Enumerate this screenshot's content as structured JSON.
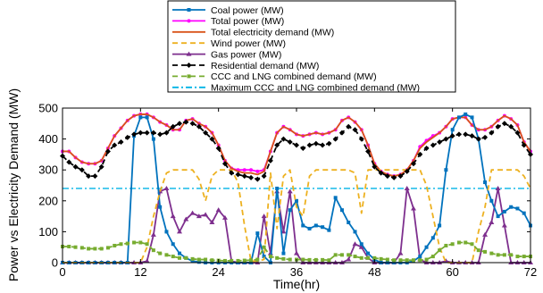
{
  "chart_data": {
    "type": "line",
    "xlabel": "Time(hr)",
    "ylabel": "Power vs Electricity Demand (MW)",
    "xlim": [
      0,
      72
    ],
    "ylim": [
      0,
      500
    ],
    "xticks": [
      0,
      12,
      24,
      36,
      48,
      60,
      72
    ],
    "yticks": [
      0,
      100,
      200,
      300,
      400,
      500
    ],
    "x": [
      0,
      1,
      2,
      3,
      4,
      5,
      6,
      7,
      8,
      9,
      10,
      11,
      12,
      13,
      14,
      15,
      16,
      17,
      18,
      19,
      20,
      21,
      22,
      23,
      24,
      25,
      26,
      27,
      28,
      29,
      30,
      31,
      32,
      33,
      34,
      35,
      36,
      37,
      38,
      39,
      40,
      41,
      42,
      43,
      44,
      45,
      46,
      47,
      48,
      49,
      50,
      51,
      52,
      53,
      54,
      55,
      56,
      57,
      58,
      59,
      60,
      61,
      62,
      63,
      64,
      65,
      66,
      67,
      68,
      69,
      70,
      71,
      72
    ],
    "legend_placement": "top-center, outside plot",
    "grid": false,
    "series": [
      {
        "name": "Coal power (MW)",
        "color": "#0072BD",
        "style": "solid",
        "marker": "square",
        "values": [
          0,
          0,
          0,
          0,
          0,
          0,
          0,
          0,
          0,
          0,
          0,
          410,
          470,
          470,
          400,
          180,
          100,
          60,
          30,
          15,
          5,
          2,
          0,
          0,
          0,
          0,
          0,
          0,
          0,
          0,
          95,
          20,
          0,
          240,
          30,
          170,
          200,
          120,
          110,
          120,
          115,
          105,
          210,
          170,
          130,
          100,
          60,
          30,
          10,
          0,
          0,
          0,
          0,
          0,
          5,
          20,
          50,
          80,
          120,
          300,
          430,
          470,
          480,
          470,
          400,
          260,
          200,
          150,
          165,
          180,
          175,
          160,
          120
        ]
      },
      {
        "name": "Total power (MW)",
        "color": "#FF00FF",
        "style": "solid",
        "marker": "circle",
        "values": [
          360,
          360,
          340,
          325,
          320,
          320,
          330,
          370,
          410,
          435,
          460,
          475,
          480,
          480,
          470,
          455,
          445,
          430,
          430,
          460,
          465,
          450,
          440,
          420,
          380,
          330,
          305,
          300,
          300,
          300,
          295,
          300,
          360,
          420,
          440,
          430,
          415,
          410,
          415,
          420,
          415,
          420,
          430,
          460,
          470,
          455,
          430,
          380,
          320,
          295,
          285,
          280,
          285,
          300,
          330,
          375,
          395,
          410,
          420,
          440,
          465,
          470,
          470,
          445,
          430,
          430,
          440,
          460,
          475,
          465,
          445,
          390,
          360
        ]
      },
      {
        "name": "Total electricity demand (MW)",
        "color": "#D95319",
        "style": "solid",
        "marker": "none",
        "values": [
          360,
          360,
          340,
          325,
          320,
          320,
          330,
          370,
          410,
          435,
          460,
          475,
          480,
          480,
          470,
          455,
          445,
          430,
          430,
          460,
          465,
          450,
          440,
          420,
          380,
          330,
          305,
          295,
          290,
          290,
          285,
          295,
          360,
          420,
          440,
          430,
          415,
          410,
          415,
          420,
          415,
          420,
          430,
          460,
          470,
          455,
          430,
          380,
          320,
          295,
          285,
          280,
          285,
          300,
          330,
          370,
          390,
          405,
          420,
          440,
          465,
          470,
          470,
          445,
          430,
          430,
          440,
          460,
          475,
          465,
          445,
          390,
          360
        ]
      },
      {
        "name": "Wind power (MW)",
        "color": "#EDB120",
        "style": "dashed",
        "marker": "none",
        "values": [
          0,
          0,
          0,
          0,
          0,
          0,
          0,
          0,
          0,
          0,
          0,
          0,
          0,
          50,
          150,
          230,
          290,
          300,
          300,
          300,
          300,
          270,
          200,
          280,
          300,
          300,
          300,
          260,
          120,
          5,
          5,
          10,
          290,
          110,
          280,
          300,
          180,
          150,
          280,
          300,
          300,
          300,
          300,
          300,
          300,
          290,
          160,
          300,
          300,
          300,
          300,
          300,
          300,
          300,
          300,
          300,
          250,
          150,
          50,
          0,
          0,
          0,
          0,
          0,
          100,
          180,
          300,
          300,
          300,
          300,
          300,
          280,
          240
        ]
      },
      {
        "name": "Gas power (MW)",
        "color": "#7E2F8E",
        "style": "solid",
        "marker": "triangle",
        "values": [
          0,
          0,
          0,
          0,
          0,
          0,
          0,
          0,
          0,
          0,
          0,
          0,
          0,
          5,
          90,
          230,
          240,
          150,
          100,
          140,
          160,
          150,
          155,
          130,
          170,
          145,
          5,
          0,
          0,
          0,
          0,
          150,
          30,
          230,
          100,
          230,
          30,
          0,
          0,
          0,
          0,
          0,
          0,
          0,
          10,
          60,
          50,
          15,
          0,
          0,
          0,
          0,
          30,
          240,
          175,
          10,
          0,
          0,
          0,
          5,
          0,
          0,
          0,
          0,
          0,
          90,
          130,
          240,
          120,
          0,
          0,
          0,
          0
        ]
      },
      {
        "name": "Residential demand (MW)",
        "color": "#000000",
        "style": "dashed",
        "marker": "diamond",
        "values": [
          345,
          325,
          310,
          300,
          280,
          280,
          310,
          360,
          380,
          390,
          405,
          415,
          420,
          420,
          420,
          415,
          420,
          440,
          450,
          455,
          450,
          440,
          420,
          400,
          370,
          320,
          290,
          285,
          280,
          275,
          270,
          280,
          330,
          380,
          400,
          390,
          380,
          370,
          380,
          385,
          380,
          385,
          400,
          420,
          440,
          430,
          400,
          360,
          310,
          290,
          280,
          275,
          280,
          295,
          320,
          350,
          370,
          380,
          390,
          400,
          410,
          415,
          415,
          410,
          400,
          405,
          420,
          440,
          450,
          440,
          420,
          380,
          350
        ]
      },
      {
        "name": "CCC and LNG combined demand (MW)",
        "color": "#77AC30",
        "style": "dashed",
        "marker": "square",
        "values": [
          52,
          52,
          50,
          48,
          45,
          45,
          45,
          48,
          55,
          60,
          62,
          65,
          65,
          60,
          40,
          30,
          25,
          20,
          15,
          15,
          12,
          10,
          10,
          8,
          7,
          6,
          6,
          6,
          7,
          8,
          10,
          50,
          20,
          15,
          12,
          10,
          10,
          10,
          9,
          9,
          9,
          8,
          25,
          25,
          25,
          20,
          15,
          15,
          15,
          12,
          10,
          8,
          8,
          8,
          8,
          8,
          10,
          20,
          40,
          55,
          60,
          65,
          65,
          60,
          40,
          35,
          30,
          25,
          25,
          25,
          20,
          20,
          20
        ]
      },
      {
        "name": "Maximum CCC and LNG combined demand (MW)",
        "color": "#00B4E6",
        "style": "dashdot",
        "marker": "none",
        "values": [
          240,
          240,
          240,
          240,
          240,
          240,
          240,
          240,
          240,
          240,
          240,
          240,
          240,
          240,
          240,
          240,
          240,
          240,
          240,
          240,
          240,
          240,
          240,
          240,
          240,
          240,
          240,
          240,
          240,
          240,
          240,
          240,
          240,
          240,
          240,
          240,
          240,
          240,
          240,
          240,
          240,
          240,
          240,
          240,
          240,
          240,
          240,
          240,
          240,
          240,
          240,
          240,
          240,
          240,
          240,
          240,
          240,
          240,
          240,
          240,
          240,
          240,
          240,
          240,
          240,
          240,
          240,
          240,
          240,
          240,
          240,
          240,
          240
        ]
      }
    ]
  }
}
